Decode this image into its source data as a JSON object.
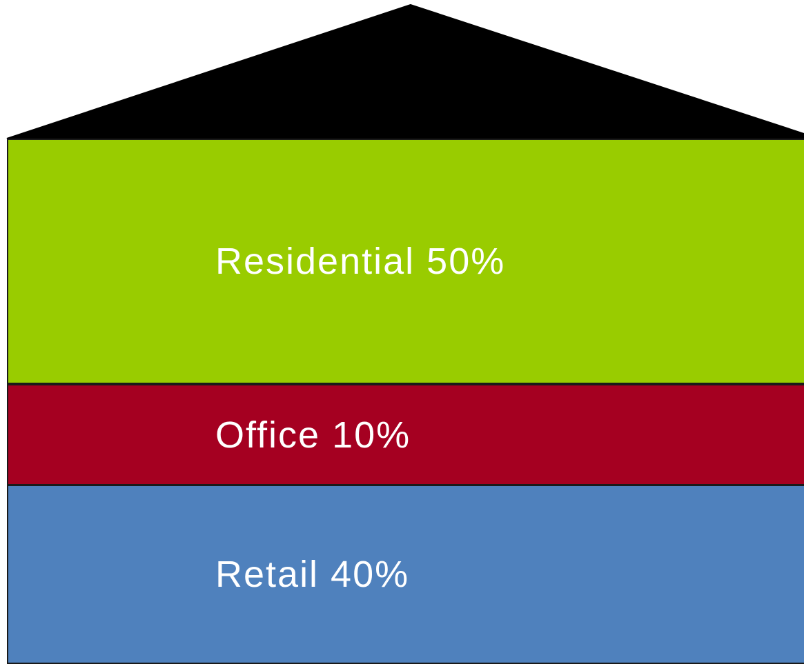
{
  "diagram": {
    "roof": {
      "color": "#000000"
    },
    "sections": [
      {
        "label": "Residential 50%",
        "color": "#99CC00"
      },
      {
        "label": "Office 10%",
        "color": "#A50021"
      },
      {
        "label": "Retail 40%",
        "color": "#4F81BD"
      }
    ]
  }
}
